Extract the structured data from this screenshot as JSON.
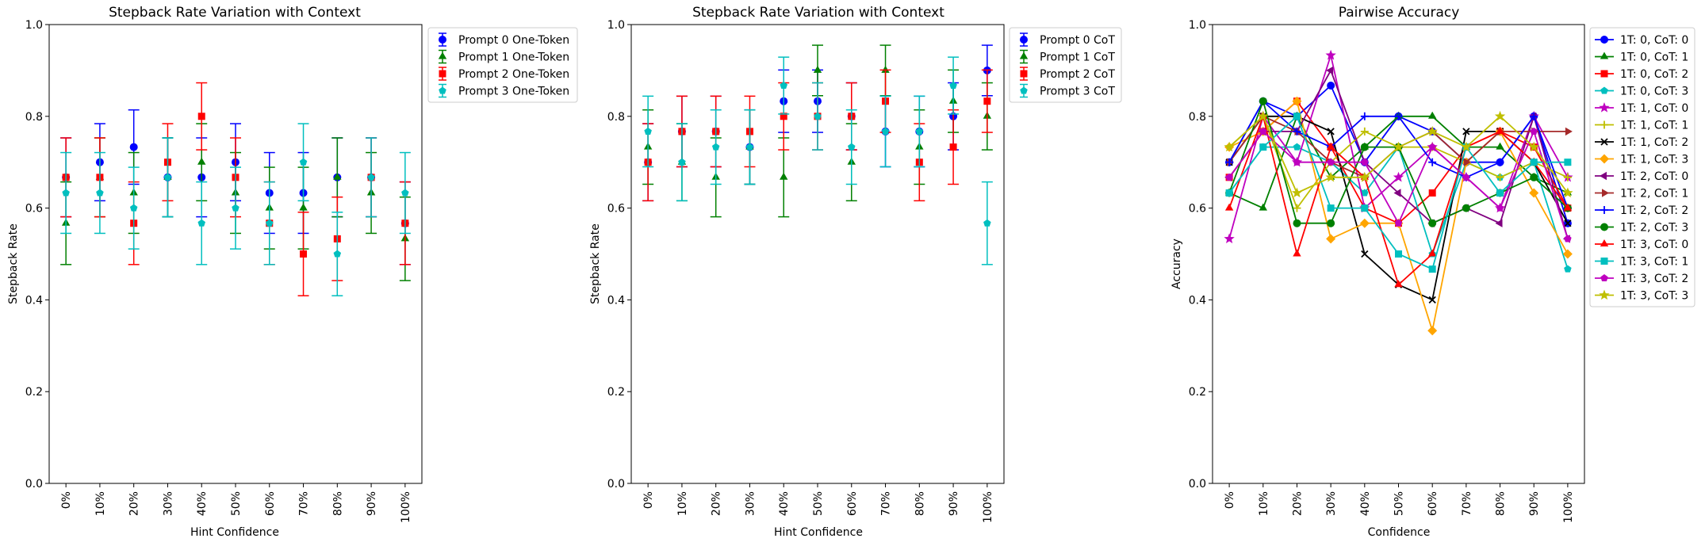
{
  "charts": [
    {
      "title": "Stepback Rate Variation with Context",
      "xlabel": "Hint Confidence",
      "ylabel": "Stepback Rate"
    },
    {
      "title": "Stepback Rate Variation with Context",
      "xlabel": "Hint Confidence",
      "ylabel": "Stepback Rate"
    },
    {
      "title": "Pairwise Accuracy",
      "xlabel": "Confidence",
      "ylabel": "Accuracy"
    }
  ],
  "chart_data": [
    {
      "type": "scatter",
      "title": "Stepback Rate Variation with Context",
      "xlabel": "Hint Confidence",
      "ylabel": "Stepback Rate",
      "categories": [
        "0%",
        "10%",
        "20%",
        "30%",
        "40%",
        "50%",
        "60%",
        "70%",
        "80%",
        "90%",
        "100%"
      ],
      "ylim": [
        0,
        1
      ],
      "yticks": [
        "0.0",
        "0.2",
        "0.4",
        "0.6",
        "0.8",
        "1.0"
      ],
      "error_bars": true,
      "legend_position": "outside upper right",
      "series": [
        {
          "name": "Prompt 0 One-Token",
          "color": "#0000ff",
          "marker": "circle",
          "values": [
            0.667,
            0.7,
            0.733,
            0.667,
            0.667,
            0.7,
            0.633,
            0.633,
            0.667,
            0.667,
            0.567
          ],
          "errors": [
            0.086,
            0.084,
            0.081,
            0.086,
            0.086,
            0.084,
            0.088,
            0.088,
            0.086,
            0.086,
            0.09
          ]
        },
        {
          "name": "Prompt 1 One-Token",
          "color": "#008000",
          "marker": "triangle",
          "values": [
            0.567,
            0.667,
            0.633,
            0.667,
            0.7,
            0.633,
            0.6,
            0.6,
            0.667,
            0.633,
            0.533
          ],
          "errors": [
            0.09,
            0.086,
            0.088,
            0.086,
            0.084,
            0.088,
            0.089,
            0.089,
            0.086,
            0.088,
            0.091
          ]
        },
        {
          "name": "Prompt 2 One-Token",
          "color": "#ff0000",
          "marker": "square",
          "values": [
            0.667,
            0.667,
            0.567,
            0.7,
            0.8,
            0.667,
            0.567,
            0.5,
            0.533,
            0.667,
            0.567
          ],
          "errors": [
            0.086,
            0.086,
            0.09,
            0.084,
            0.073,
            0.086,
            0.09,
            0.091,
            0.091,
            0.086,
            0.09
          ]
        },
        {
          "name": "Prompt 3 One-Token",
          "color": "#00bfbf",
          "marker": "pentagon",
          "values": [
            0.633,
            0.633,
            0.6,
            0.667,
            0.567,
            0.6,
            0.567,
            0.7,
            0.5,
            0.667,
            0.633
          ],
          "errors": [
            0.088,
            0.088,
            0.089,
            0.086,
            0.09,
            0.089,
            0.09,
            0.084,
            0.091,
            0.086,
            0.088
          ]
        }
      ]
    },
    {
      "type": "scatter",
      "title": "Stepback Rate Variation with Context",
      "xlabel": "Hint Confidence",
      "ylabel": "Stepback Rate",
      "categories": [
        "0%",
        "10%",
        "20%",
        "30%",
        "40%",
        "50%",
        "60%",
        "70%",
        "80%",
        "90%",
        "100%"
      ],
      "ylim": [
        0,
        1
      ],
      "yticks": [
        "0.0",
        "0.2",
        "0.4",
        "0.6",
        "0.8",
        "1.0"
      ],
      "error_bars": true,
      "legend_position": "outside upper right",
      "series": [
        {
          "name": "Prompt 0 CoT",
          "color": "#0000ff",
          "marker": "circle",
          "values": [
            0.7,
            0.767,
            0.767,
            0.733,
            0.833,
            0.833,
            0.8,
            0.767,
            0.767,
            0.8,
            0.9
          ],
          "errors": [
            0.084,
            0.077,
            0.077,
            0.081,
            0.068,
            0.068,
            0.073,
            0.077,
            0.077,
            0.073,
            0.055
          ]
        },
        {
          "name": "Prompt 1 CoT",
          "color": "#008000",
          "marker": "triangle",
          "values": [
            0.733,
            0.7,
            0.667,
            0.733,
            0.667,
            0.9,
            0.7,
            0.9,
            0.733,
            0.833,
            0.8
          ],
          "errors": [
            0.081,
            0.084,
            0.086,
            0.081,
            0.086,
            0.055,
            0.084,
            0.055,
            0.081,
            0.068,
            0.073
          ]
        },
        {
          "name": "Prompt 2 CoT",
          "color": "#ff0000",
          "marker": "square",
          "values": [
            0.7,
            0.767,
            0.767,
            0.767,
            0.8,
            0.8,
            0.8,
            0.833,
            0.7,
            0.733,
            0.833
          ],
          "errors": [
            0.084,
            0.077,
            0.077,
            0.077,
            0.073,
            0.073,
            0.073,
            0.068,
            0.084,
            0.081,
            0.068
          ]
        },
        {
          "name": "Prompt 3 CoT",
          "color": "#00bfbf",
          "marker": "pentagon",
          "values": [
            0.767,
            0.7,
            0.733,
            0.733,
            0.867,
            0.8,
            0.733,
            0.767,
            0.767,
            0.867,
            0.567
          ],
          "errors": [
            0.077,
            0.084,
            0.081,
            0.081,
            0.062,
            0.073,
            0.081,
            0.077,
            0.077,
            0.062,
            0.09
          ]
        }
      ]
    },
    {
      "type": "line",
      "title": "Pairwise Accuracy",
      "xlabel": "Confidence",
      "ylabel": "Accuracy",
      "categories": [
        "0%",
        "10%",
        "20%",
        "30%",
        "40%",
        "50%",
        "60%",
        "70%",
        "80%",
        "90%",
        "100%"
      ],
      "ylim": [
        0,
        1
      ],
      "yticks": [
        "0.0",
        "0.2",
        "0.4",
        "0.6",
        "0.8",
        "1.0"
      ],
      "legend_position": "outside upper right",
      "series": [
        {
          "name": "1T: 0, CoT: 0",
          "color": "#0000ff",
          "marker": "circle",
          "values": [
            0.7,
            0.833,
            0.8,
            0.867,
            0.7,
            0.8,
            0.767,
            0.7,
            0.7,
            0.8,
            0.567
          ]
        },
        {
          "name": "1T: 0, CoT: 1",
          "color": "#008000",
          "marker": "triangle",
          "values": [
            0.633,
            0.6,
            0.8,
            0.667,
            0.733,
            0.8,
            0.8,
            0.733,
            0.733,
            0.667,
            0.633
          ]
        },
        {
          "name": "1T: 0, CoT: 2",
          "color": "#ff0000",
          "marker": "square",
          "values": [
            0.667,
            0.767,
            0.833,
            0.733,
            0.6,
            0.567,
            0.633,
            0.733,
            0.767,
            0.733,
            0.6
          ]
        },
        {
          "name": "1T: 0, CoT: 3",
          "color": "#00bfbf",
          "marker": "pentagon",
          "values": [
            0.633,
            0.733,
            0.733,
            0.7,
            0.633,
            0.733,
            0.5,
            0.7,
            0.667,
            0.7,
            0.467
          ]
        },
        {
          "name": "1T: 1, CoT: 0",
          "color": "#bf00bf",
          "marker": "star",
          "values": [
            0.533,
            0.8,
            0.7,
            0.933,
            0.6,
            0.667,
            0.733,
            0.667,
            0.6,
            0.8,
            0.667
          ]
        },
        {
          "name": "1T: 1, CoT: 1",
          "color": "#bfbf00",
          "marker": "plus",
          "values": [
            0.733,
            0.8,
            0.6,
            0.7,
            0.767,
            0.733,
            0.733,
            0.7,
            0.667,
            0.7,
            0.667
          ]
        },
        {
          "name": "1T: 1, CoT: 2",
          "color": "#000000",
          "marker": "x",
          "values": [
            0.7,
            0.8,
            0.8,
            0.767,
            0.5,
            0.433,
            0.4,
            0.767,
            0.767,
            0.7,
            0.567
          ]
        },
        {
          "name": "1T: 1, CoT: 3",
          "color": "#ffa500",
          "marker": "diamond",
          "values": [
            0.733,
            0.767,
            0.833,
            0.533,
            0.567,
            0.567,
            0.333,
            0.7,
            0.767,
            0.633,
            0.5
          ]
        },
        {
          "name": "1T: 2, CoT: 0",
          "color": "#800080",
          "marker": "triangle-left",
          "values": [
            0.667,
            0.767,
            0.767,
            0.9,
            0.7,
            0.633,
            0.567,
            0.6,
            0.567,
            0.8,
            0.533
          ]
        },
        {
          "name": "1T: 2, CoT: 1",
          "color": "#a52a2a",
          "marker": "triangle-right",
          "values": [
            0.7,
            0.8,
            0.767,
            0.7,
            0.667,
            0.733,
            0.767,
            0.7,
            0.767,
            0.767,
            0.767
          ]
        },
        {
          "name": "1T: 2, CoT: 2",
          "color": "#0000ff",
          "marker": "plus",
          "values": [
            0.7,
            0.833,
            0.767,
            0.733,
            0.8,
            0.8,
            0.7,
            0.667,
            0.7,
            0.8,
            0.6
          ]
        },
        {
          "name": "1T: 2, CoT: 3",
          "color": "#008000",
          "marker": "circle",
          "values": [
            0.633,
            0.833,
            0.567,
            0.567,
            0.733,
            0.733,
            0.567,
            0.6,
            0.633,
            0.667,
            0.6
          ]
        },
        {
          "name": "1T: 3, CoT: 0",
          "color": "#ff0000",
          "marker": "triangle",
          "values": [
            0.6,
            0.8,
            0.5,
            0.733,
            0.667,
            0.433,
            0.5,
            0.733,
            0.767,
            0.7,
            0.6
          ]
        },
        {
          "name": "1T: 3, CoT: 1",
          "color": "#00bfbf",
          "marker": "square",
          "values": [
            0.633,
            0.733,
            0.8,
            0.6,
            0.6,
            0.5,
            0.467,
            0.733,
            0.633,
            0.7,
            0.7
          ]
        },
        {
          "name": "1T: 3, CoT: 2",
          "color": "#bf00bf",
          "marker": "pentagon",
          "values": [
            0.667,
            0.767,
            0.7,
            0.7,
            0.7,
            0.567,
            0.733,
            0.667,
            0.6,
            0.767,
            0.533
          ]
        },
        {
          "name": "1T: 3, CoT: 3",
          "color": "#bfbf00",
          "marker": "star",
          "values": [
            0.733,
            0.8,
            0.633,
            0.667,
            0.667,
            0.733,
            0.767,
            0.733,
            0.8,
            0.733,
            0.633
          ]
        }
      ]
    }
  ]
}
